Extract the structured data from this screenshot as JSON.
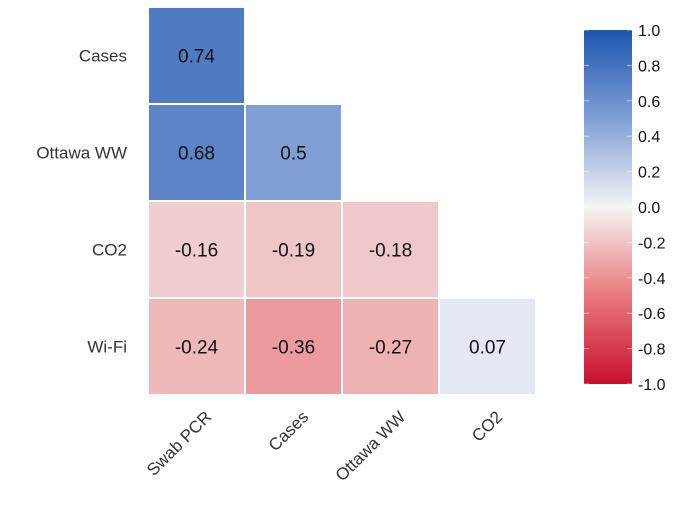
{
  "chart_data": {
    "type": "heatmap",
    "subtype": "lower-triangle-correlation",
    "rows": [
      "Cases",
      "Ottawa WW",
      "CO2",
      "Wi-Fi"
    ],
    "columns": [
      "Swab PCR",
      "Cases",
      "Ottawa WW",
      "CO2"
    ],
    "cells": [
      {
        "row": 0,
        "col": 0,
        "value": 0.74,
        "label": "0.74"
      },
      {
        "row": 1,
        "col": 0,
        "value": 0.68,
        "label": "0.68"
      },
      {
        "row": 1,
        "col": 1,
        "value": 0.5,
        "label": "0.5"
      },
      {
        "row": 2,
        "col": 0,
        "value": -0.16,
        "label": "-0.16"
      },
      {
        "row": 2,
        "col": 1,
        "value": -0.19,
        "label": "-0.19"
      },
      {
        "row": 2,
        "col": 2,
        "value": -0.18,
        "label": "-0.18"
      },
      {
        "row": 3,
        "col": 0,
        "value": -0.24,
        "label": "-0.24"
      },
      {
        "row": 3,
        "col": 1,
        "value": -0.36,
        "label": "-0.36"
      },
      {
        "row": 3,
        "col": 2,
        "value": -0.27,
        "label": "-0.27"
      },
      {
        "row": 3,
        "col": 3,
        "value": 0.07,
        "label": "0.07"
      }
    ],
    "colorbar": {
      "range": [
        -1.0,
        1.0
      ],
      "ticks": [
        {
          "value": 1.0,
          "label": "1.0"
        },
        {
          "value": 0.8,
          "label": "0.8"
        },
        {
          "value": 0.6,
          "label": "0.6"
        },
        {
          "value": 0.4,
          "label": "0.4"
        },
        {
          "value": 0.2,
          "label": "0.2"
        },
        {
          "value": 0.0,
          "label": "0.0"
        },
        {
          "value": -0.2,
          "label": "-0.2"
        },
        {
          "value": -0.4,
          "label": "-0.4"
        },
        {
          "value": -0.6,
          "label": "-0.6"
        },
        {
          "value": -0.8,
          "label": "-0.8"
        },
        {
          "value": -1.0,
          "label": "-1.0"
        }
      ],
      "colormap": "coolwarm-diverging",
      "stops": [
        {
          "value": -1.0,
          "color": "#c8102e"
        },
        {
          "value": -0.5,
          "color": "#e8797c"
        },
        {
          "value": 0.0,
          "color": "#f4f4f4"
        },
        {
          "value": 0.5,
          "color": "#7f9ed4"
        },
        {
          "value": 1.0,
          "color": "#1d56b0"
        }
      ]
    },
    "grid": false,
    "legend_position": "right"
  }
}
